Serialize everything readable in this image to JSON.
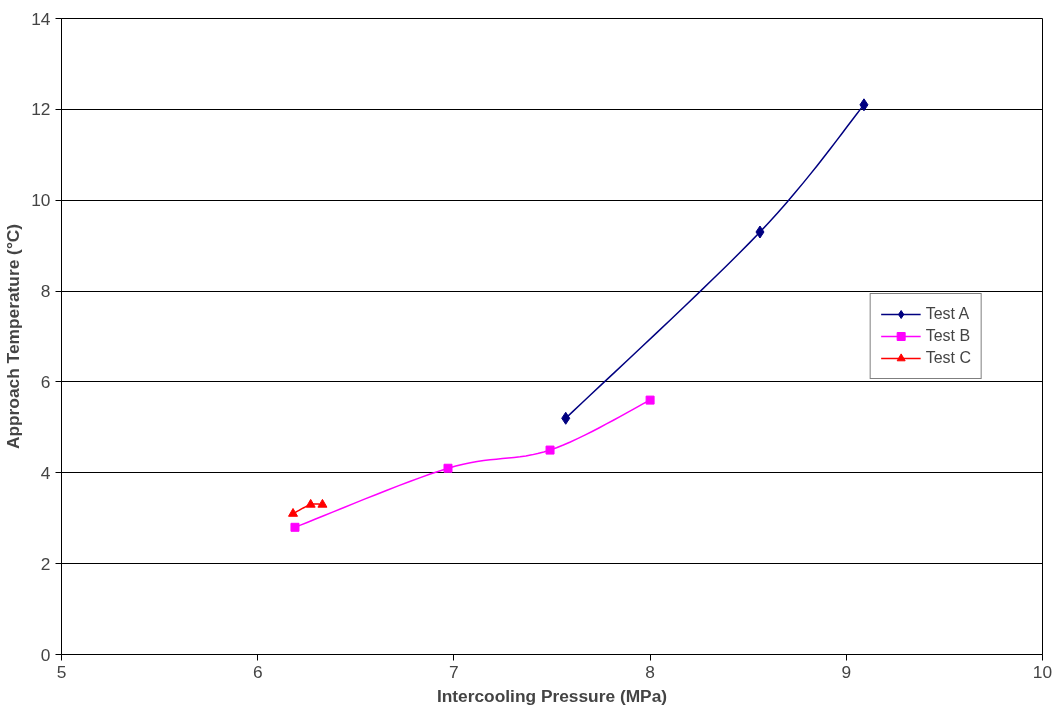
{
  "chart_data": {
    "type": "line",
    "xlabel": "Intercooling Pressure (MPa)",
    "ylabel": "Approach Temperature (°C)",
    "xlim": [
      5,
      10
    ],
    "xticks": [
      5,
      6,
      7,
      8,
      9,
      10
    ],
    "ylim": [
      0,
      14
    ],
    "yticks": [
      0,
      2,
      4,
      6,
      8,
      10,
      12,
      14
    ],
    "grid": "y",
    "legend": "right",
    "line_style": "solid",
    "series": [
      {
        "name": "Test A",
        "color": "#000080",
        "marker": "diamond",
        "x": [
          7.57,
          8.56,
          9.09
        ],
        "values": [
          5.2,
          9.3,
          12.1
        ]
      },
      {
        "name": "Test B",
        "color": "#ff00ff",
        "marker": "square",
        "x": [
          6.19,
          6.97,
          7.49,
          8.0
        ],
        "values": [
          2.8,
          4.1,
          4.5,
          5.6
        ]
      },
      {
        "name": "Test C",
        "color": "#ff0000",
        "marker": "triangle",
        "x": [
          6.18,
          6.27,
          6.33
        ],
        "values": [
          3.1,
          3.3,
          3.3
        ]
      }
    ]
  }
}
